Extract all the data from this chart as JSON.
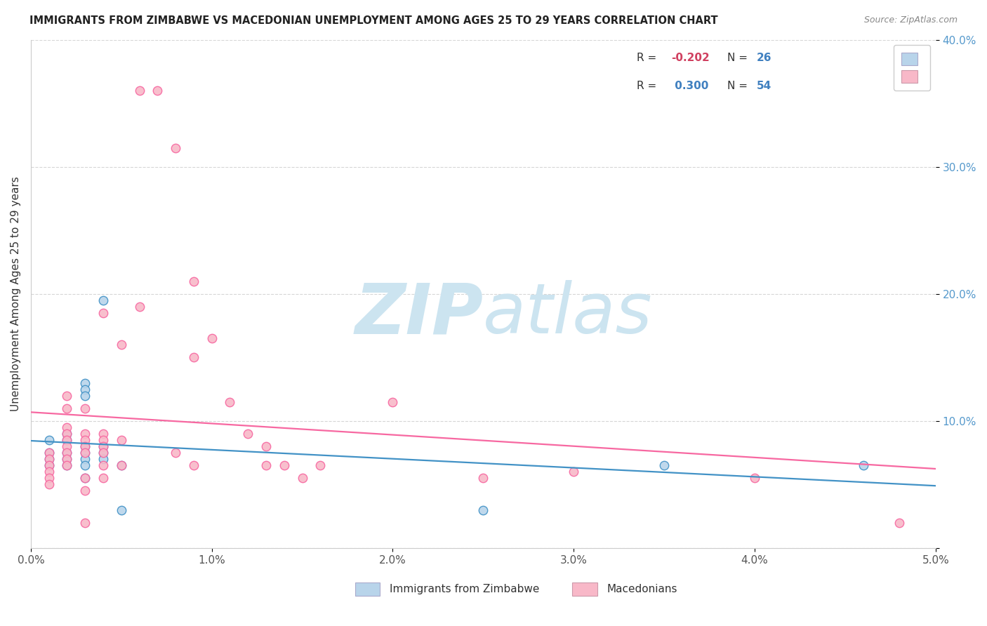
{
  "title": "IMMIGRANTS FROM ZIMBABWE VS MACEDONIAN UNEMPLOYMENT AMONG AGES 25 TO 29 YEARS CORRELATION CHART",
  "source": "Source: ZipAtlas.com",
  "ylabel": "Unemployment Among Ages 25 to 29 years",
  "legend_label_1": "Immigrants from Zimbabwe",
  "legend_label_2": "Macedonians",
  "R1": -0.202,
  "N1": 26,
  "R2": 0.3,
  "N2": 54,
  "color_blue_fill": "#b8d4ea",
  "color_pink_fill": "#f8b8c8",
  "color_line_blue": "#4292c6",
  "color_line_pink": "#f768a1",
  "color_R_value_blue": "#d04060",
  "color_R_value_pink": "#4080c0",
  "color_N_blue": "#4080c0",
  "color_N_pink": "#4080c0",
  "color_text_dark": "#404040",
  "xlim": [
    0.0,
    0.05
  ],
  "ylim": [
    0.0,
    0.4
  ],
  "xticks": [
    0.0,
    0.01,
    0.02,
    0.03,
    0.04,
    0.05
  ],
  "yticks": [
    0.0,
    0.1,
    0.2,
    0.3,
    0.4
  ],
  "xtick_labels": [
    "0.0%",
    "1.0%",
    "2.0%",
    "3.0%",
    "4.0%",
    "5.0%"
  ],
  "ytick_labels": [
    "",
    "10.0%",
    "20.0%",
    "30.0%",
    "40.0%"
  ],
  "blue_points": [
    [
      0.001,
      0.075
    ],
    [
      0.001,
      0.085
    ],
    [
      0.001,
      0.07
    ],
    [
      0.001,
      0.065
    ],
    [
      0.002,
      0.09
    ],
    [
      0.002,
      0.085
    ],
    [
      0.002,
      0.075
    ],
    [
      0.002,
      0.07
    ],
    [
      0.002,
      0.065
    ],
    [
      0.003,
      0.13
    ],
    [
      0.003,
      0.125
    ],
    [
      0.003,
      0.12
    ],
    [
      0.003,
      0.08
    ],
    [
      0.003,
      0.075
    ],
    [
      0.003,
      0.07
    ],
    [
      0.003,
      0.065
    ],
    [
      0.003,
      0.055
    ],
    [
      0.004,
      0.195
    ],
    [
      0.004,
      0.08
    ],
    [
      0.004,
      0.075
    ],
    [
      0.004,
      0.07
    ],
    [
      0.005,
      0.065
    ],
    [
      0.005,
      0.03
    ],
    [
      0.025,
      0.03
    ],
    [
      0.035,
      0.065
    ],
    [
      0.046,
      0.065
    ]
  ],
  "pink_points": [
    [
      0.001,
      0.075
    ],
    [
      0.001,
      0.07
    ],
    [
      0.001,
      0.065
    ],
    [
      0.001,
      0.06
    ],
    [
      0.001,
      0.055
    ],
    [
      0.001,
      0.05
    ],
    [
      0.002,
      0.12
    ],
    [
      0.002,
      0.11
    ],
    [
      0.002,
      0.095
    ],
    [
      0.002,
      0.09
    ],
    [
      0.002,
      0.085
    ],
    [
      0.002,
      0.08
    ],
    [
      0.002,
      0.075
    ],
    [
      0.002,
      0.07
    ],
    [
      0.002,
      0.065
    ],
    [
      0.003,
      0.11
    ],
    [
      0.003,
      0.09
    ],
    [
      0.003,
      0.085
    ],
    [
      0.003,
      0.08
    ],
    [
      0.003,
      0.075
    ],
    [
      0.003,
      0.055
    ],
    [
      0.003,
      0.045
    ],
    [
      0.003,
      0.02
    ],
    [
      0.004,
      0.185
    ],
    [
      0.004,
      0.09
    ],
    [
      0.004,
      0.085
    ],
    [
      0.004,
      0.08
    ],
    [
      0.004,
      0.075
    ],
    [
      0.004,
      0.065
    ],
    [
      0.004,
      0.055
    ],
    [
      0.005,
      0.16
    ],
    [
      0.005,
      0.085
    ],
    [
      0.005,
      0.065
    ],
    [
      0.006,
      0.36
    ],
    [
      0.006,
      0.19
    ],
    [
      0.007,
      0.36
    ],
    [
      0.008,
      0.315
    ],
    [
      0.008,
      0.075
    ],
    [
      0.009,
      0.21
    ],
    [
      0.009,
      0.15
    ],
    [
      0.009,
      0.065
    ],
    [
      0.01,
      0.165
    ],
    [
      0.011,
      0.115
    ],
    [
      0.012,
      0.09
    ],
    [
      0.013,
      0.08
    ],
    [
      0.013,
      0.065
    ],
    [
      0.014,
      0.065
    ],
    [
      0.015,
      0.055
    ],
    [
      0.016,
      0.065
    ],
    [
      0.02,
      0.115
    ],
    [
      0.025,
      0.055
    ],
    [
      0.03,
      0.06
    ],
    [
      0.04,
      0.055
    ],
    [
      0.048,
      0.02
    ]
  ],
  "watermark_top": "ZIP",
  "watermark_bottom": "atlas",
  "watermark_color": "#cce4f0",
  "watermark_fontsize": 72
}
